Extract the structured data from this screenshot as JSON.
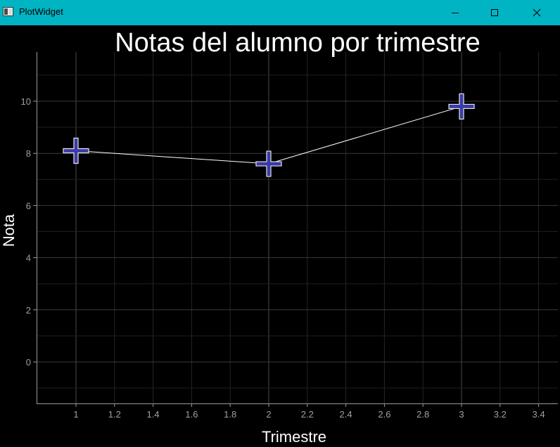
{
  "window": {
    "title": "PlotWidget",
    "accent": "#00b4c4"
  },
  "chart_data": {
    "type": "line",
    "title": "Notas del alumno por trimestre",
    "xlabel": "Trimestre",
    "ylabel": "Nota",
    "x": [
      1,
      2,
      3
    ],
    "series": [
      {
        "values": [
          8.1,
          7.6,
          9.8
        ],
        "line_color": "#ffffff",
        "marker": "cross",
        "marker_color": "#3a3aa8"
      }
    ],
    "xlim": [
      0.8,
      3.45
    ],
    "ylim": [
      -1.6,
      11.8
    ],
    "xticks": [
      1,
      1.2,
      1.4,
      1.6,
      1.8,
      2,
      2.2,
      2.4,
      2.6,
      2.8,
      3,
      3.2,
      3.4
    ],
    "xtick_labels": [
      "1",
      "1.2",
      "1.4",
      "1.6",
      "1.8",
      "2",
      "2.2",
      "2.4",
      "2.6",
      "2.8",
      "3",
      "3.2",
      "3.4"
    ],
    "yticks": [
      0,
      2,
      4,
      6,
      8,
      10
    ],
    "ytick_labels": [
      "0",
      "2",
      "4",
      "6",
      "8",
      "10"
    ],
    "grid": true,
    "background": "#000000"
  }
}
